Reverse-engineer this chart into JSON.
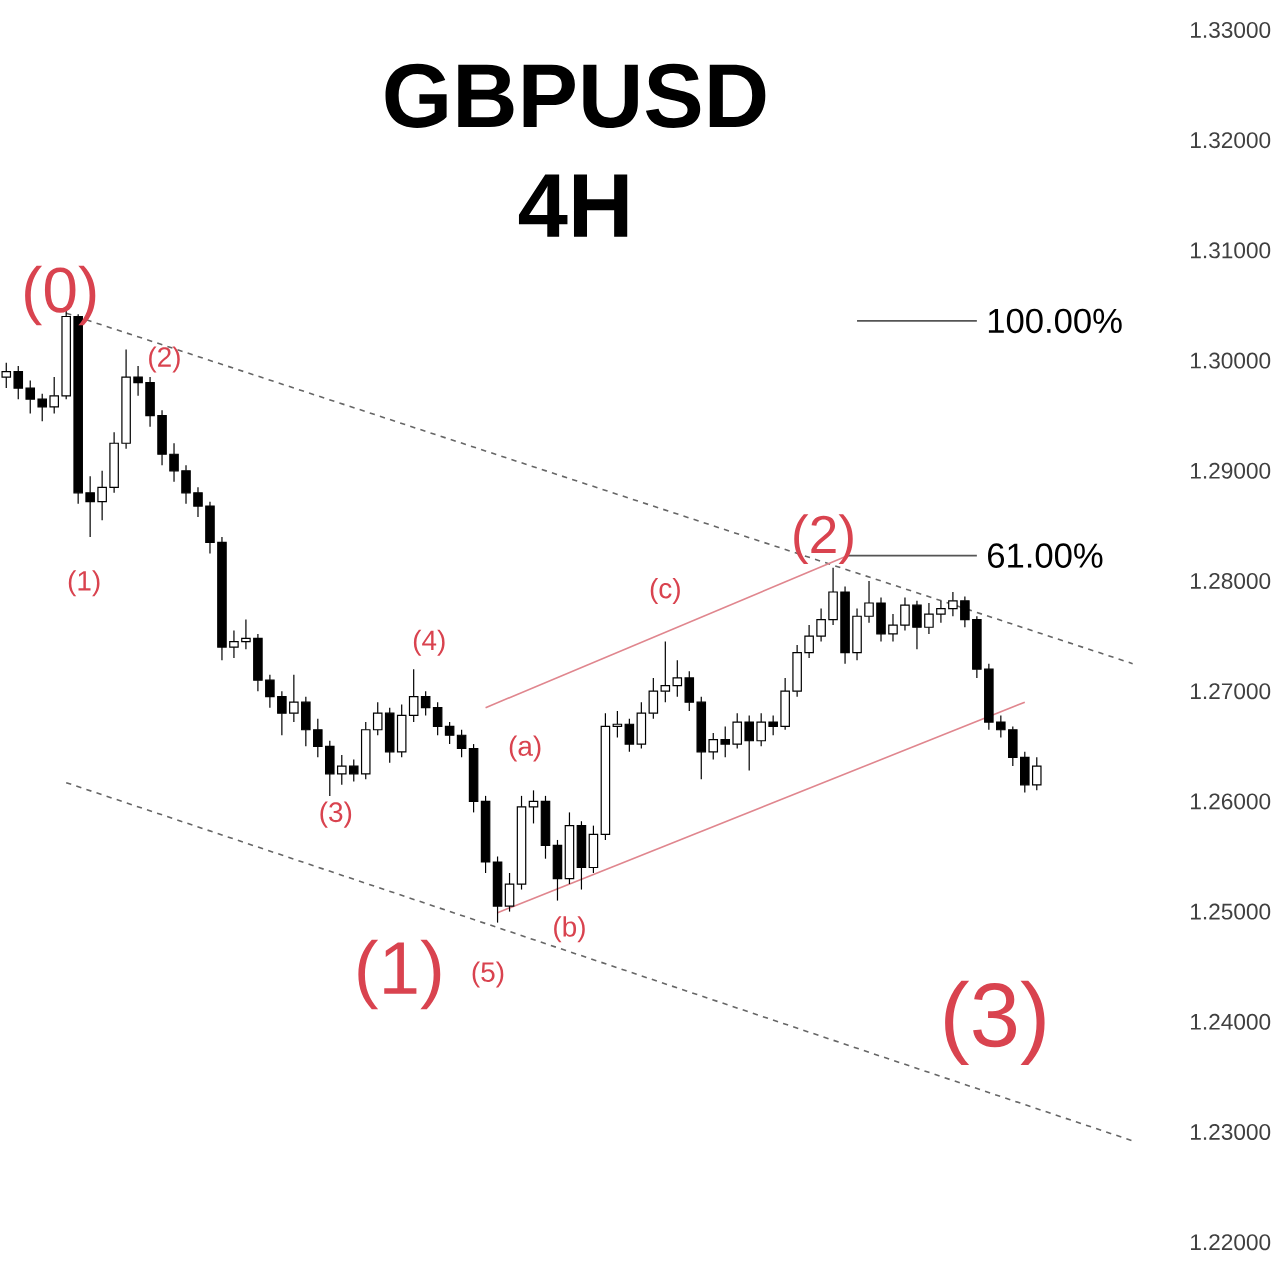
{
  "chart_data": {
    "type": "candlestick",
    "title": "GBPUSD",
    "subtitle": "4H",
    "color": "#000000",
    "categories": [
      null,
      null,
      null,
      null,
      null,
      null,
      null,
      null,
      null,
      null,
      null,
      null,
      null,
      null,
      null,
      null,
      null,
      null,
      null,
      null,
      null,
      null,
      null,
      null,
      null,
      null,
      null,
      null,
      null,
      null,
      null,
      null,
      null,
      null,
      null,
      null,
      null,
      null,
      null,
      null,
      null,
      null,
      null,
      null,
      null,
      null,
      null,
      null,
      null,
      null,
      null,
      null,
      null,
      null,
      null,
      null,
      null,
      null,
      null,
      null,
      null,
      null,
      null,
      null,
      null,
      null,
      null,
      null,
      null,
      null,
      null,
      null,
      null,
      null,
      null,
      null,
      null,
      null,
      null,
      null,
      null,
      null,
      null,
      null,
      null,
      null,
      null,
      null,
      null,
      null,
      null,
      null,
      null,
      null,
      null,
      null,
      null,
      null
    ],
    "ohlc": [
      [
        1.2985,
        1.2998,
        1.2975,
        1.299
      ],
      [
        1.299,
        1.2995,
        1.2965,
        1.2975
      ],
      [
        1.2975,
        1.2982,
        1.2952,
        1.2965
      ],
      [
        1.2965,
        1.297,
        1.2945,
        1.2958
      ],
      [
        1.2958,
        1.2985,
        1.2952,
        1.2968
      ],
      [
        1.2968,
        1.3046,
        1.2965,
        1.304
      ],
      [
        1.304,
        1.3042,
        1.287,
        1.288
      ],
      [
        1.288,
        1.2895,
        1.284,
        1.2872
      ],
      [
        1.2872,
        1.29,
        1.2855,
        1.2885
      ],
      [
        1.2885,
        1.2935,
        1.288,
        1.2925
      ],
      [
        1.2925,
        1.301,
        1.292,
        1.2985
      ],
      [
        1.2985,
        1.2995,
        1.2968,
        1.298
      ],
      [
        1.298,
        1.2985,
        1.294,
        1.295
      ],
      [
        1.295,
        1.2955,
        1.2905,
        1.2915
      ],
      [
        1.2915,
        1.2925,
        1.289,
        1.29
      ],
      [
        1.29,
        1.2905,
        1.287,
        1.288
      ],
      [
        1.288,
        1.2885,
        1.2858,
        1.2868
      ],
      [
        1.2868,
        1.2872,
        1.2825,
        1.2835
      ],
      [
        1.2835,
        1.284,
        1.2728,
        1.274
      ],
      [
        1.274,
        1.2755,
        1.273,
        1.2745
      ],
      [
        1.2745,
        1.2765,
        1.2738,
        1.2748
      ],
      [
        1.2748,
        1.2752,
        1.27,
        1.271
      ],
      [
        1.271,
        1.2715,
        1.2685,
        1.2695
      ],
      [
        1.2695,
        1.27,
        1.266,
        1.268
      ],
      [
        1.268,
        1.2715,
        1.2672,
        1.269
      ],
      [
        1.269,
        1.2695,
        1.265,
        1.2665
      ],
      [
        1.2665,
        1.2675,
        1.264,
        1.265
      ],
      [
        1.265,
        1.2655,
        1.2605,
        1.2625
      ],
      [
        1.2625,
        1.2642,
        1.2615,
        1.2632
      ],
      [
        1.2632,
        1.2638,
        1.2618,
        1.2625
      ],
      [
        1.2625,
        1.2672,
        1.262,
        1.2665
      ],
      [
        1.2665,
        1.269,
        1.266,
        1.268
      ],
      [
        1.268,
        1.2685,
        1.2635,
        1.2645
      ],
      [
        1.2645,
        1.2688,
        1.264,
        1.2678
      ],
      [
        1.2678,
        1.272,
        1.2672,
        1.2695
      ],
      [
        1.2695,
        1.27,
        1.2678,
        1.2685
      ],
      [
        1.2685,
        1.269,
        1.266,
        1.2668
      ],
      [
        1.2668,
        1.2672,
        1.2652,
        1.266
      ],
      [
        1.266,
        1.2665,
        1.264,
        1.2648
      ],
      [
        1.2648,
        1.2652,
        1.259,
        1.26
      ],
      [
        1.26,
        1.2605,
        1.2535,
        1.2545
      ],
      [
        1.2545,
        1.255,
        1.249,
        1.2505
      ],
      [
        1.2505,
        1.2535,
        1.25,
        1.2525
      ],
      [
        1.2525,
        1.2605,
        1.252,
        1.2595
      ],
      [
        1.2595,
        1.261,
        1.258,
        1.26
      ],
      [
        1.26,
        1.2605,
        1.2548,
        1.256
      ],
      [
        1.256,
        1.2565,
        1.251,
        1.253
      ],
      [
        1.253,
        1.259,
        1.2525,
        1.2578
      ],
      [
        1.2578,
        1.2582,
        1.252,
        1.254
      ],
      [
        1.254,
        1.2578,
        1.2535,
        1.257
      ],
      [
        1.257,
        1.268,
        1.2565,
        1.2668
      ],
      [
        1.2668,
        1.2682,
        1.2658,
        1.267
      ],
      [
        1.267,
        1.2675,
        1.2645,
        1.2652
      ],
      [
        1.2652,
        1.269,
        1.2648,
        1.268
      ],
      [
        1.268,
        1.2712,
        1.2675,
        1.27
      ],
      [
        1.27,
        1.2745,
        1.269,
        1.2705
      ],
      [
        1.2705,
        1.2728,
        1.2695,
        1.2712
      ],
      [
        1.2712,
        1.2718,
        1.2682,
        1.269
      ],
      [
        1.269,
        1.2695,
        1.262,
        1.2645
      ],
      [
        1.2645,
        1.2662,
        1.2638,
        1.2656
      ],
      [
        1.2656,
        1.2668,
        1.264,
        1.2652
      ],
      [
        1.2652,
        1.268,
        1.2648,
        1.2672
      ],
      [
        1.2672,
        1.2678,
        1.2628,
        1.2655
      ],
      [
        1.2655,
        1.268,
        1.265,
        1.2672
      ],
      [
        1.2672,
        1.2678,
        1.266,
        1.2668
      ],
      [
        1.2668,
        1.2712,
        1.2665,
        1.27
      ],
      [
        1.27,
        1.2742,
        1.2695,
        1.2735
      ],
      [
        1.2735,
        1.276,
        1.273,
        1.275
      ],
      [
        1.275,
        1.2775,
        1.2745,
        1.2765
      ],
      [
        1.2765,
        1.2812,
        1.276,
        1.279
      ],
      [
        1.279,
        1.2795,
        1.2725,
        1.2735
      ],
      [
        1.2735,
        1.2775,
        1.2728,
        1.2768
      ],
      [
        1.2768,
        1.28,
        1.2762,
        1.278
      ],
      [
        1.278,
        1.2785,
        1.2745,
        1.2752
      ],
      [
        1.2752,
        1.277,
        1.2745,
        1.276
      ],
      [
        1.276,
        1.2785,
        1.2755,
        1.2778
      ],
      [
        1.2778,
        1.2782,
        1.2738,
        1.2758
      ],
      [
        1.2758,
        1.278,
        1.2752,
        1.277
      ],
      [
        1.277,
        1.2782,
        1.2762,
        1.2775
      ],
      [
        1.2775,
        1.279,
        1.2768,
        1.2782
      ],
      [
        1.2782,
        1.2786,
        1.2758,
        1.2765
      ],
      [
        1.2765,
        1.2768,
        1.2712,
        1.272
      ],
      [
        1.272,
        1.2725,
        1.2665,
        1.2672
      ],
      [
        1.2672,
        1.2678,
        1.2658,
        1.2665
      ],
      [
        1.2665,
        1.2668,
        1.2632,
        1.264
      ],
      [
        1.264,
        1.2645,
        1.2608,
        1.2615
      ],
      [
        1.2615,
        1.264,
        1.261,
        1.2632
      ],
      null,
      null,
      null,
      null,
      null,
      null,
      null,
      null,
      null,
      null,
      null
    ],
    "series": [
      {
        "type": "line",
        "color": "#666666",
        "line_style": "dashed",
        "values": [
          null,
          null,
          null,
          null,
          null,
          1.3043,
          null,
          null,
          null,
          null,
          null,
          null,
          null,
          null,
          null,
          null,
          null,
          null,
          null,
          null,
          null,
          null,
          null,
          null,
          null,
          null,
          null,
          null,
          null,
          null,
          null,
          null,
          null,
          null,
          null,
          null,
          null,
          null,
          null,
          null,
          null,
          null,
          null,
          null,
          null,
          null,
          null,
          null,
          null,
          null,
          null,
          null,
          null,
          null,
          null,
          null,
          null,
          null,
          null,
          null,
          null,
          null,
          null,
          null,
          null,
          null,
          null,
          null,
          null,
          null,
          null,
          null,
          null,
          null,
          null,
          null,
          null,
          null,
          null,
          null,
          null,
          null,
          null,
          null,
          null,
          null,
          null,
          null,
          null,
          null,
          null,
          null,
          null,
          null,
          1.2725,
          null,
          null,
          null
        ]
      },
      {
        "type": "line",
        "color": "#666666",
        "line_style": "dashed",
        "values": [
          null,
          null,
          null,
          null,
          null,
          1.2617,
          null,
          null,
          null,
          null,
          null,
          null,
          null,
          null,
          null,
          null,
          null,
          null,
          null,
          null,
          null,
          null,
          null,
          null,
          null,
          null,
          null,
          null,
          null,
          null,
          null,
          null,
          null,
          null,
          null,
          null,
          null,
          null,
          null,
          null,
          null,
          null,
          null,
          null,
          null,
          null,
          null,
          null,
          null,
          null,
          null,
          null,
          null,
          null,
          null,
          null,
          null,
          null,
          null,
          null,
          null,
          null,
          null,
          null,
          null,
          null,
          null,
          null,
          null,
          null,
          null,
          null,
          null,
          null,
          null,
          null,
          null,
          null,
          null,
          null,
          null,
          null,
          null,
          null,
          null,
          null,
          null,
          null,
          null,
          null,
          null,
          null,
          null,
          null,
          1.2292,
          null,
          null,
          null
        ]
      },
      {
        "type": "line",
        "color": "#e0868e",
        "line_style": "solid",
        "values": [
          null,
          null,
          null,
          null,
          null,
          null,
          null,
          null,
          null,
          null,
          null,
          null,
          null,
          null,
          null,
          null,
          null,
          null,
          null,
          null,
          null,
          null,
          null,
          null,
          null,
          null,
          null,
          null,
          null,
          null,
          null,
          null,
          null,
          null,
          null,
          null,
          null,
          null,
          null,
          null,
          1.2685,
          null,
          null,
          null,
          null,
          null,
          null,
          null,
          null,
          null,
          null,
          null,
          null,
          null,
          null,
          null,
          null,
          null,
          null,
          null,
          null,
          null,
          null,
          null,
          null,
          null,
          null,
          null,
          null,
          null,
          1.2822,
          null,
          null,
          null,
          null,
          null,
          null,
          null,
          null,
          null,
          null,
          null,
          null,
          null,
          null,
          null,
          null,
          null,
          null,
          null,
          null,
          null,
          null,
          null,
          null,
          null,
          null,
          null
        ]
      },
      {
        "type": "line",
        "color": "#e0868e",
        "line_style": "solid",
        "values": [
          null,
          null,
          null,
          null,
          null,
          null,
          null,
          null,
          null,
          null,
          null,
          null,
          null,
          null,
          null,
          null,
          null,
          null,
          null,
          null,
          null,
          null,
          null,
          null,
          null,
          null,
          null,
          null,
          null,
          null,
          null,
          null,
          null,
          null,
          null,
          null,
          null,
          null,
          null,
          null,
          null,
          1.2499,
          null,
          null,
          null,
          null,
          null,
          null,
          null,
          null,
          null,
          null,
          null,
          null,
          null,
          null,
          null,
          null,
          null,
          null,
          null,
          null,
          null,
          null,
          null,
          null,
          null,
          null,
          null,
          null,
          null,
          null,
          null,
          null,
          null,
          null,
          null,
          null,
          null,
          null,
          null,
          null,
          null,
          null,
          null,
          1.269,
          null,
          null,
          null,
          null,
          null,
          null,
          null,
          null,
          null,
          null,
          null,
          null
        ]
      },
      {
        "type": "line",
        "name": "100.00%",
        "color": "#555555",
        "line_style": "solid",
        "values": [
          null,
          null,
          null,
          null,
          null,
          null,
          null,
          null,
          null,
          null,
          null,
          null,
          null,
          null,
          null,
          null,
          null,
          null,
          null,
          null,
          null,
          null,
          null,
          null,
          null,
          null,
          null,
          null,
          null,
          null,
          null,
          null,
          null,
          null,
          null,
          null,
          null,
          null,
          null,
          null,
          null,
          null,
          null,
          null,
          null,
          null,
          null,
          null,
          null,
          null,
          null,
          null,
          null,
          null,
          null,
          null,
          null,
          null,
          null,
          null,
          null,
          null,
          null,
          null,
          null,
          null,
          null,
          null,
          null,
          null,
          null,
          1.3036,
          null,
          null,
          null,
          null,
          null,
          null,
          null,
          null,
          null,
          1.3036,
          null,
          null,
          null,
          null,
          null,
          null,
          null,
          null,
          null,
          null,
          null,
          null,
          null,
          null,
          null,
          null
        ]
      },
      {
        "type": "line",
        "name": "61.00%",
        "color": "#555555",
        "line_style": "solid",
        "values": [
          null,
          null,
          null,
          null,
          null,
          null,
          null,
          null,
          null,
          null,
          null,
          null,
          null,
          null,
          null,
          null,
          null,
          null,
          null,
          null,
          null,
          null,
          null,
          null,
          null,
          null,
          null,
          null,
          null,
          null,
          null,
          null,
          null,
          null,
          null,
          null,
          null,
          null,
          null,
          null,
          null,
          null,
          null,
          null,
          null,
          null,
          null,
          null,
          null,
          null,
          null,
          null,
          null,
          null,
          null,
          null,
          null,
          null,
          null,
          null,
          null,
          null,
          null,
          null,
          null,
          null,
          null,
          null,
          null,
          null,
          1.2823,
          null,
          null,
          null,
          null,
          null,
          null,
          null,
          null,
          null,
          null,
          1.2823,
          null,
          null,
          null,
          null,
          null,
          null,
          null,
          null,
          null,
          null,
          null,
          null,
          null,
          null,
          null,
          null
        ]
      }
    ],
    "annotations": [
      "(0)",
      "(1)",
      "(2)",
      "(3)",
      "(4)",
      "(5)",
      "(a)",
      "(b)",
      "(c)",
      "(1)",
      "(2)",
      "(3)"
    ],
    "ylim": [
      1.22,
      1.33
    ],
    "yticks": [
      {
        "value": 1.22,
        "label": "1.22000"
      },
      {
        "value": 1.23,
        "label": "1.23000"
      },
      {
        "value": 1.24,
        "label": "1.24000"
      },
      {
        "value": 1.25,
        "label": "1.25000"
      },
      {
        "value": 1.26,
        "label": "1.26000"
      },
      {
        "value": 1.27,
        "label": "1.27000"
      },
      {
        "value": 1.28,
        "label": "1.28000"
      },
      {
        "value": 1.29,
        "label": "1.29000"
      },
      {
        "value": 1.3,
        "label": "1.30000"
      },
      {
        "value": 1.31,
        "label": "1.31000"
      },
      {
        "value": 1.32,
        "label": "1.32000"
      },
      {
        "value": 1.33,
        "label": "1.33000"
      }
    ],
    "tick_labels": "y"
  }
}
